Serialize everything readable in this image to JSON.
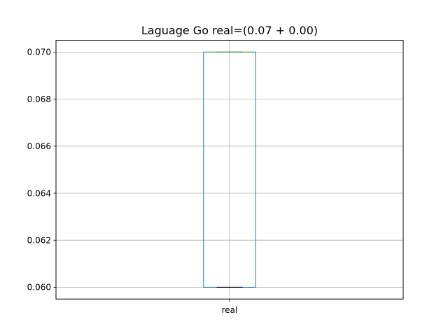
{
  "chart_data": {
    "type": "box",
    "title": "Laguage Go real=(0.07 + 0.00)",
    "xlabel": "",
    "ylabel": "",
    "categories": [
      "real"
    ],
    "boxes": [
      {
        "category": "real",
        "whisker_low": 0.06,
        "q1": 0.06,
        "median": 0.07,
        "q3": 0.07,
        "whisker_high": 0.07
      }
    ],
    "ylim": [
      0.0595,
      0.0705
    ],
    "yticks": [
      0.06,
      0.062,
      0.064,
      0.066,
      0.068,
      0.07
    ],
    "ytick_labels": [
      "0.060",
      "0.062",
      "0.064",
      "0.066",
      "0.068",
      "0.070"
    ],
    "grid": true,
    "colors": {
      "box": "#1f77b4",
      "median": "#2ca02c",
      "whisker": "#000000",
      "grid": "#b0b0b0",
      "axes": "#000000"
    }
  }
}
